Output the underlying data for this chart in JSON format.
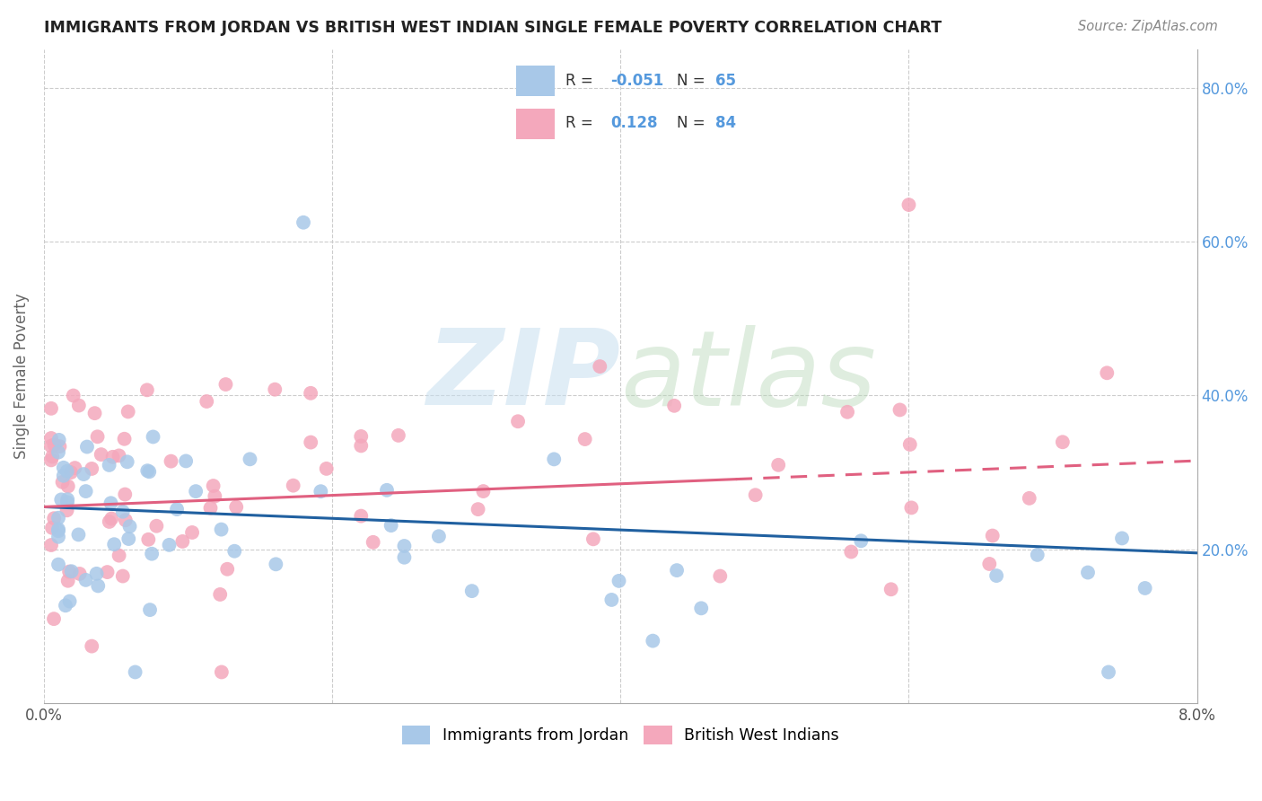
{
  "title": "IMMIGRANTS FROM JORDAN VS BRITISH WEST INDIAN SINGLE FEMALE POVERTY CORRELATION CHART",
  "source": "Source: ZipAtlas.com",
  "ylabel": "Single Female Poverty",
  "xlim": [
    0.0,
    0.08
  ],
  "ylim": [
    0.0,
    0.85
  ],
  "yticks": [
    0.2,
    0.4,
    0.6,
    0.8
  ],
  "ytick_labels": [
    "20.0%",
    "40.0%",
    "60.0%",
    "80.0%"
  ],
  "xticks": [
    0.0,
    0.02,
    0.04,
    0.06,
    0.08
  ],
  "xtick_labels": [
    "0.0%",
    "",
    "",
    "",
    "8.0%"
  ],
  "jordan_R": "-0.051",
  "jordan_N": "65",
  "bwi_R": "0.128",
  "bwi_N": "84",
  "jordan_color": "#a8c8e8",
  "bwi_color": "#f4a8bc",
  "jordan_line_color": "#2060a0",
  "bwi_line_color": "#e06080",
  "background_color": "#ffffff",
  "grid_color": "#cccccc",
  "right_tick_color": "#5599dd",
  "title_color": "#222222",
  "source_color": "#888888",
  "ylabel_color": "#666666"
}
